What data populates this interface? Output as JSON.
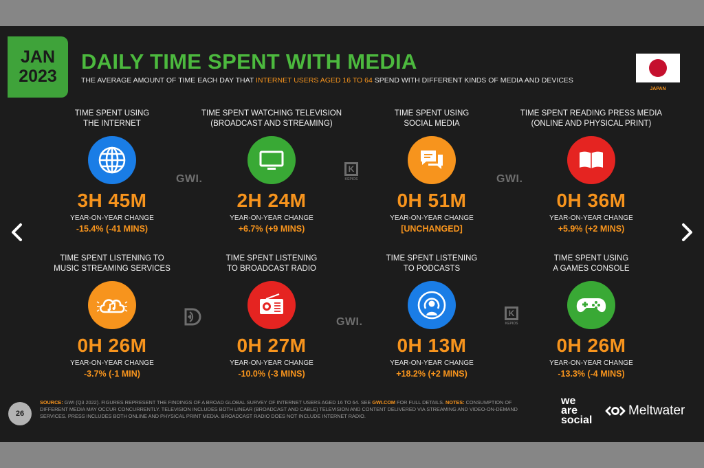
{
  "header": {
    "date_month": "JAN",
    "date_year": "2023",
    "title": "DAILY TIME SPENT WITH MEDIA",
    "subtitle_pre": "THE AVERAGE AMOUNT OF TIME EACH DAY THAT ",
    "subtitle_highlight": "INTERNET USERS AGED 16 TO 64",
    "subtitle_post": " SPEND WITH DIFFERENT KINDS OF MEDIA AND DEVICES",
    "country": "JAPAN"
  },
  "yoy_label": "YEAR-ON-YEAR CHANGE",
  "cards": [
    {
      "label_1": "TIME SPENT USING",
      "label_2": "THE INTERNET",
      "value": "3H 45M",
      "change": "-15.4% (-41 MINS)",
      "icon": "globe-icon",
      "color": "#1a7de6"
    },
    {
      "label_1": "TIME SPENT WATCHING TELEVISION",
      "label_2": "(BROADCAST AND STREAMING)",
      "value": "2H 24M",
      "change": "+6.7% (+9 MINS)",
      "icon": "tv-icon",
      "color": "#39a935"
    },
    {
      "label_1": "TIME SPENT USING",
      "label_2": "SOCIAL MEDIA",
      "value": "0H 51M",
      "change": "[UNCHANGED]",
      "icon": "chat-bubbles-icon",
      "color": "#f7941d"
    },
    {
      "label_1": "TIME SPENT READING PRESS MEDIA",
      "label_2": "(ONLINE AND PHYSICAL PRINT)",
      "value": "0H 36M",
      "change": "+5.9% (+2 MINS)",
      "icon": "book-icon",
      "color": "#e52421"
    },
    {
      "label_1": "TIME SPENT LISTENING TO",
      "label_2": "MUSIC STREAMING SERVICES",
      "value": "0H 26M",
      "change": "-3.7% (-1 MIN)",
      "icon": "cloud-music-icon",
      "color": "#f7941d"
    },
    {
      "label_1": "TIME SPENT LISTENING",
      "label_2": "TO BROADCAST RADIO",
      "value": "0H 27M",
      "change": "-10.0% (-3 MINS)",
      "icon": "radio-icon",
      "color": "#e52421"
    },
    {
      "label_1": "TIME SPENT LISTENING",
      "label_2": "TO PODCASTS",
      "value": "0H 13M",
      "change": "+18.2% (+2 MINS)",
      "icon": "podcast-icon",
      "color": "#1a7de6"
    },
    {
      "label_1": "TIME SPENT USING",
      "label_2": "A GAMES CONSOLE",
      "value": "0H 26M",
      "change": "-13.3% (-4 MINS)",
      "icon": "gamepad-icon",
      "color": "#39a935"
    }
  ],
  "watermarks": {
    "gwi": "GWI.",
    "kepios": "KEPIOS",
    "kepios_letter": "K"
  },
  "footer": {
    "page_number": "26",
    "source_label": "SOURCE:",
    "source_text": " GWI (Q3 2022). FIGURES REPRESENT THE FINDINGS OF A BROAD GLOBAL SURVEY OF INTERNET USERS AGED 16 TO 64. SEE ",
    "source_link": "GWI.COM",
    "source_post": " FOR FULL DETAILS. ",
    "notes_label": "NOTES:",
    "notes_text": " CONSUMPTION OF DIFFERENT MEDIA MAY OCCUR CONCURRENTLY. TELEVISION INCLUDES BOTH LINEAR (BROADCAST AND CABLE) TELEVISION AND CONTENT DELIVERED VIA STREAMING AND VIDEO-ON-DEMAND SERVICES. PRESS INCLUDES BOTH ONLINE AND PHYSICAL PRINT MEDIA. BROADCAST RADIO DOES NOT INCLUDE INTERNET RADIO.",
    "brand_ws_1": "we",
    "brand_ws_2": "are",
    "brand_ws_3": "social",
    "brand_mw": "Meltwater"
  }
}
